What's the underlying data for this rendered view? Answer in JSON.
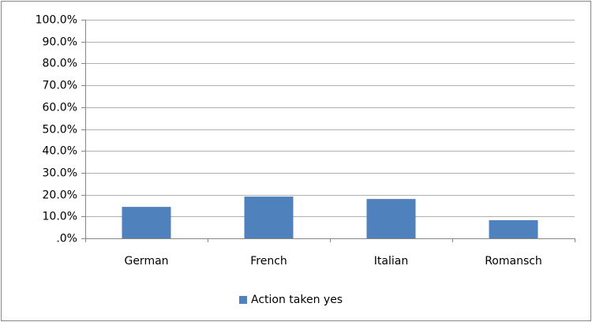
{
  "chart_data": {
    "type": "bar",
    "categories": [
      "German",
      "French",
      "Italian",
      "Romansch"
    ],
    "series": [
      {
        "name": "Action taken yes",
        "color": "#4f81bd",
        "values": [
          14.4,
          19.1,
          18.0,
          8.3
        ]
      }
    ],
    "ylim": [
      0,
      100
    ],
    "yticks": [
      {
        "value": 0,
        "label": ".0%"
      },
      {
        "value": 10,
        "label": "10.0%"
      },
      {
        "value": 20,
        "label": "20.0%"
      },
      {
        "value": 30,
        "label": "30.0%"
      },
      {
        "value": 40,
        "label": "40.0%"
      },
      {
        "value": 50,
        "label": "50.0%"
      },
      {
        "value": 60,
        "label": "60.0%"
      },
      {
        "value": 70,
        "label": "70.0%"
      },
      {
        "value": 80,
        "label": "80.0%"
      },
      {
        "value": 90,
        "label": "90.0%"
      },
      {
        "value": 100,
        "label": "100.0%"
      }
    ],
    "grid": true,
    "legend": "bottom"
  }
}
